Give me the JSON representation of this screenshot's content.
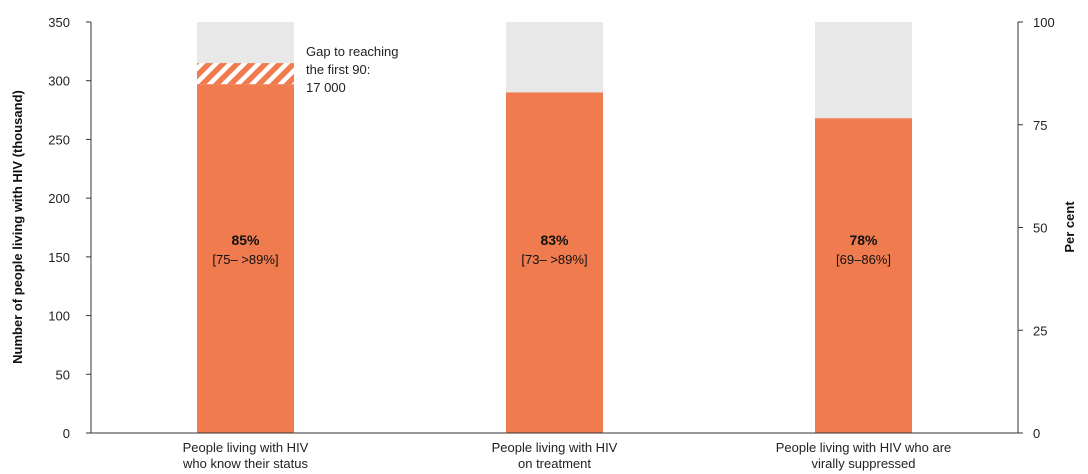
{
  "chart_data": {
    "type": "bar",
    "title": "",
    "ylabel_left": "Number of people living with HIV (thousand)",
    "ylabel_right": "Per cent",
    "ylim_left": [
      0,
      350
    ],
    "ylim_right": [
      0,
      100
    ],
    "yticks_left": [
      "0",
      "50",
      "100",
      "150",
      "200",
      "250",
      "300",
      "350"
    ],
    "yticks_right": [
      "0",
      "25",
      "50",
      "75",
      "100"
    ],
    "categories": [
      [
        "People living with HIV",
        "who know their status"
      ],
      [
        "People living with HIV",
        "on treatment"
      ],
      [
        "People living with HIV who are",
        "virally suppressed"
      ]
    ],
    "series": [
      {
        "values": [
          297,
          290,
          268
        ]
      }
    ],
    "total": 350,
    "gap": {
      "category_index": 0,
      "from": 297,
      "to": 315,
      "label": [
        "Gap to reaching",
        "the first 90:",
        "17 000"
      ]
    },
    "bar_labels": [
      {
        "percent": "85%",
        "range": "[75– >89%]"
      },
      {
        "percent": "83%",
        "range": "[73– >89%]"
      },
      {
        "percent": "78%",
        "range": "[69–86%]"
      }
    ],
    "colors": {
      "bar": "#ef7b4e",
      "remainder": "#e8e8e8",
      "gap_stripe": "#ef7b4e",
      "axis": "#333333"
    },
    "grid": false
  }
}
